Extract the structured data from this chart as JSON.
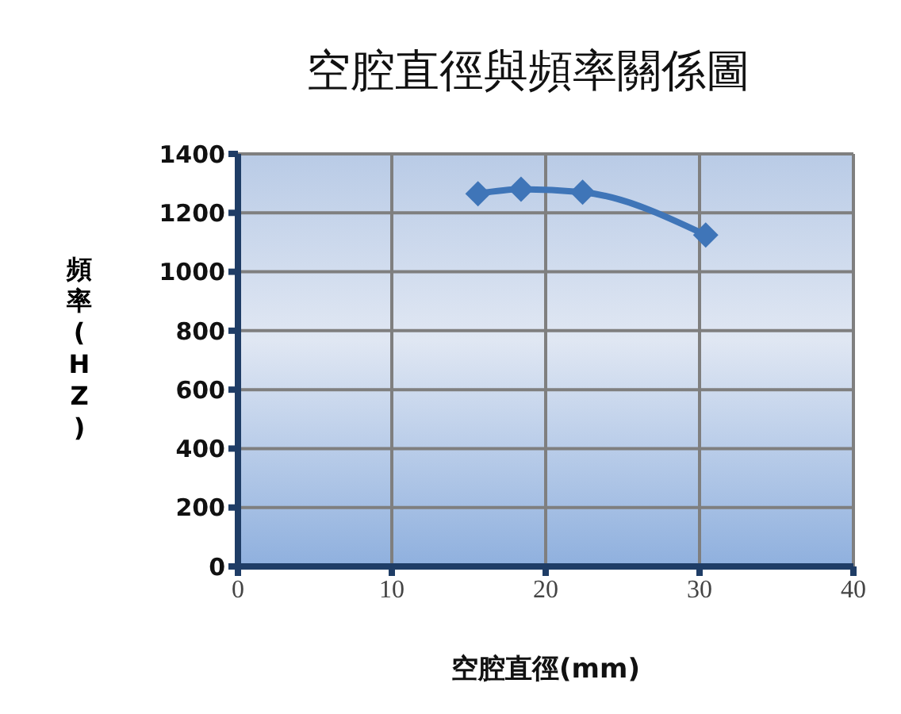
{
  "chart_data": {
    "type": "line",
    "title": "空腔直徑與頻率關係圖",
    "xlabel": "空腔直徑(mm)",
    "ylabel": "頻率(HZ)",
    "x": [
      15.6,
      18.4,
      22.4,
      30.4
    ],
    "series": [
      {
        "color": "#3f75b8",
        "values": [
          1265,
          1280,
          1270,
          1125
        ]
      }
    ],
    "xlim": [
      0,
      40
    ],
    "xticks": [
      0,
      10,
      20,
      30,
      40
    ],
    "ylim": [
      0,
      1400
    ],
    "yticks": [
      0,
      200,
      400,
      600,
      800,
      1000,
      1200,
      1400
    ],
    "grid": true,
    "marker": "diamond",
    "line_style": "solid"
  }
}
